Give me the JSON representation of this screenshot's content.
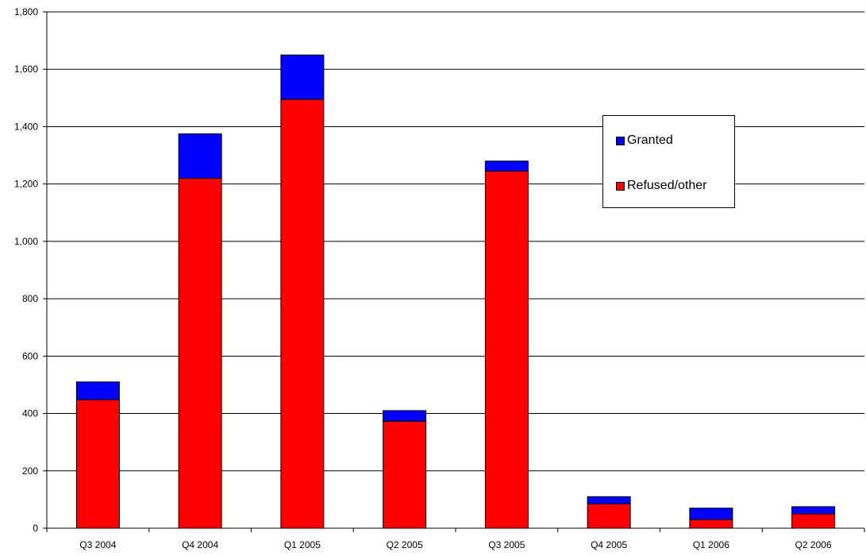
{
  "chart_data": {
    "type": "bar",
    "stacked": true,
    "title": "",
    "xlabel": "",
    "ylabel": "",
    "categories": [
      "Q3 2004",
      "Q4 2004",
      "Q1 2005",
      "Q2 2005",
      "Q3 2005",
      "Q4 2005",
      "Q1 2006",
      "Q2 2006"
    ],
    "series": [
      {
        "name": "Refused/other",
        "color": "#ff0000",
        "values": [
          448,
          1220,
          1495,
          373,
          1245,
          85,
          30,
          50
        ]
      },
      {
        "name": "Granted",
        "color": "#0000ff",
        "values": [
          62,
          155,
          155,
          37,
          35,
          25,
          40,
          25
        ]
      }
    ],
    "ylim": [
      0,
      1800
    ],
    "yticks": [
      0,
      200,
      400,
      600,
      800,
      1000,
      1200,
      1400,
      1600,
      1800
    ],
    "ytick_labels": [
      "0",
      "200",
      "400",
      "600",
      "800",
      "1,000",
      "1,200",
      "1,400",
      "1,600",
      "1,800"
    ],
    "grid": true,
    "legend_position": "right",
    "legend_order": [
      "Granted",
      "Refused/other"
    ]
  }
}
